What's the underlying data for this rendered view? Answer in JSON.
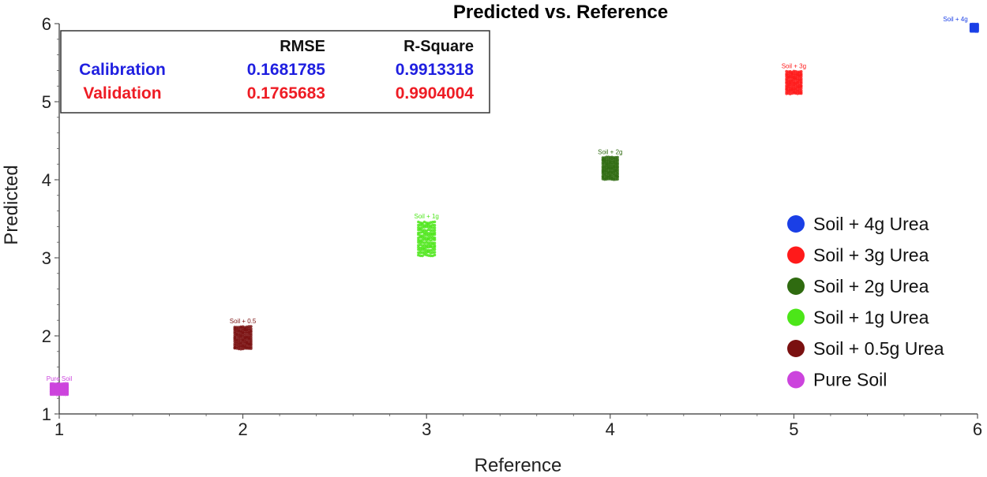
{
  "chart_data": {
    "type": "scatter",
    "title": "Predicted vs. Reference",
    "xlabel": "Reference",
    "ylabel": "Predicted",
    "xlim": [
      1,
      6
    ],
    "ylim": [
      1,
      6
    ],
    "xticks": [
      "1",
      "2",
      "3",
      "4",
      "5",
      "6"
    ],
    "yticks": [
      "1",
      "2",
      "3",
      "4",
      "5",
      "6"
    ],
    "grid": false,
    "legend_position": "right",
    "stats_table": {
      "columns": [
        "",
        "RMSE",
        "R-Square"
      ],
      "rows": [
        {
          "label": "Calibration",
          "rmse": "0.1681785",
          "r_square": "0.9913318",
          "color": "#1f1fe0"
        },
        {
          "label": "Validation",
          "rmse": "0.1765683",
          "r_square": "0.9904004",
          "color": "#ee1c24"
        }
      ]
    },
    "series": [
      {
        "name": "Soil + 4g Urea",
        "color": "#1a3fe6",
        "x": 6,
        "y_center": 5.95,
        "y_spread": 0.1,
        "x_spread": 0.08,
        "point_label": "Soil + 4g"
      },
      {
        "name": "Soil + 3g Urea",
        "color": "#ff1a1a",
        "x": 5,
        "y_center": 5.25,
        "y_spread": 0.3,
        "x_spread": 0.09,
        "point_label": "Soil + 3g"
      },
      {
        "name": "Soil + 2g Urea",
        "color": "#2f6b10",
        "x": 4,
        "y_center": 4.15,
        "y_spread": 0.3,
        "x_spread": 0.09,
        "point_label": "Soil + 2g"
      },
      {
        "name": "Soil + 1g Urea",
        "color": "#4ce619",
        "x": 3,
        "y_center": 3.25,
        "y_spread": 0.45,
        "x_spread": 0.1,
        "point_label": "Soil + 1g"
      },
      {
        "name": "Soil + 0.5g Urea",
        "color": "#7a1010",
        "x": 2,
        "y_center": 1.98,
        "y_spread": 0.3,
        "x_spread": 0.1,
        "point_label": "Soil + 0.5"
      },
      {
        "name": "Pure Soil",
        "color": "#cc44dd",
        "x": 1,
        "y_center": 1.32,
        "y_spread": 0.15,
        "x_spread": 0.1,
        "point_label": "Pure Soil"
      }
    ]
  }
}
